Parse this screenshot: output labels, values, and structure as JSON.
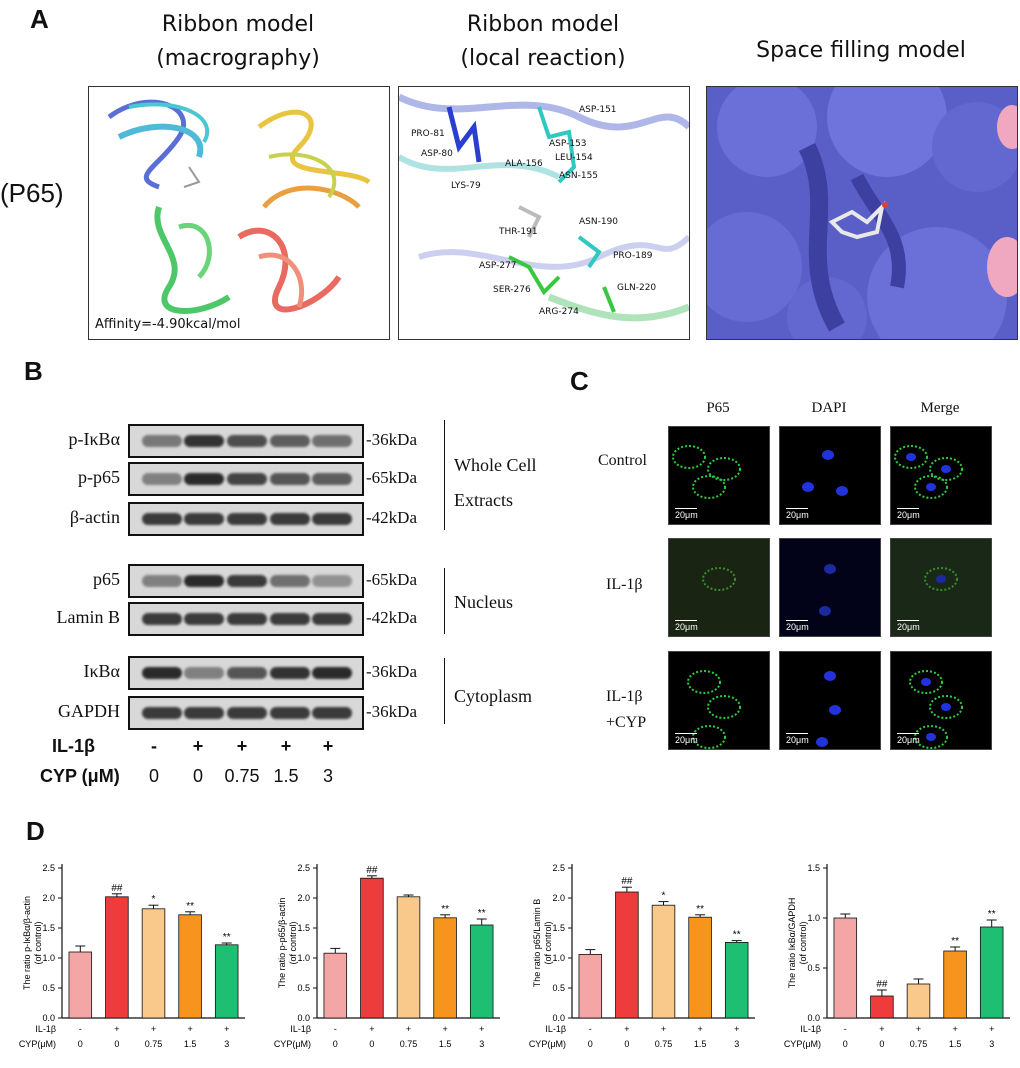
{
  "panel_a": {
    "label": "A",
    "row_label": "(P65)",
    "titles": [
      {
        "line1": "Ribbon model",
        "line2": "(macrography)"
      },
      {
        "line1": "Ribbon model",
        "line2": "(local reaction)"
      },
      {
        "line1": "Space filling model",
        "line2": ""
      }
    ],
    "affinity": "Affinity=-4.90kcal/mol",
    "residues": [
      "ASP-151",
      "PRO-81",
      "ASP-153",
      "ASP-80",
      "ALA-156",
      "LEU-154",
      "LYS-79",
      "ASN-155",
      "ASN-190",
      "THR-191",
      "PRO-189",
      "ASP-277",
      "SER-276",
      "GLN-220",
      "ARG-274"
    ]
  },
  "panel_b": {
    "label": "B",
    "blots": [
      {
        "name": "p-IκBα",
        "kda": "-36kDa",
        "intensity": [
          0.55,
          0.95,
          0.8,
          0.7,
          0.6
        ]
      },
      {
        "name": "p-p65",
        "kda": "-65kDa",
        "intensity": [
          0.5,
          1.0,
          0.85,
          0.75,
          0.7
        ]
      },
      {
        "name": "β-actin",
        "kda": "-42kDa",
        "intensity": [
          0.9,
          0.9,
          0.9,
          0.9,
          0.9
        ]
      },
      {
        "name": "p65",
        "kda": "-65kDa",
        "intensity": [
          0.5,
          1.0,
          0.9,
          0.6,
          0.4
        ]
      },
      {
        "name": "Lamin B",
        "kda": "-42kDa",
        "intensity": [
          0.9,
          0.9,
          0.9,
          0.9,
          0.9
        ]
      },
      {
        "name": "IκBα",
        "kda": "-36kDa",
        "intensity": [
          1.0,
          0.5,
          0.75,
          0.95,
          1.0
        ]
      },
      {
        "name": "GAPDH",
        "kda": "-36kDa",
        "intensity": [
          0.9,
          0.9,
          0.9,
          0.9,
          0.9
        ]
      }
    ],
    "groups": {
      "whole1": "Whole Cell",
      "whole2": "Extracts",
      "nucleus": "Nucleus",
      "cytoplasm": "Cytoplasm"
    },
    "il1b_label": "IL-1β",
    "il1b": [
      "-",
      "+",
      "+",
      "+",
      "+"
    ],
    "cyp_label": "CYP (μM)",
    "cyp": [
      "0",
      "0",
      "0.75",
      "1.5",
      "3"
    ]
  },
  "panel_c": {
    "label": "C",
    "columns": [
      "P65",
      "DAPI",
      "Merge"
    ],
    "rows": [
      {
        "line1": "Control",
        "line2": ""
      },
      {
        "line1": "IL-1β",
        "line2": ""
      },
      {
        "line1": "IL-1β",
        "line2": "+CYP"
      }
    ],
    "scale_bar": "20μm"
  },
  "panel_d": {
    "label": "D"
  },
  "chart_data": [
    {
      "type": "bar",
      "ylabel1": "The ratio  p-IκBα/β-actin",
      "ylabel2": "(of control)",
      "ylim": [
        0,
        2.5
      ],
      "yticks": [
        "0.0",
        "0.5",
        "1.0",
        "1.5",
        "2.0",
        "2.5"
      ],
      "values": [
        1.1,
        2.02,
        1.82,
        1.72,
        1.22
      ],
      "errors": [
        0.1,
        0.05,
        0.06,
        0.05,
        0.03
      ],
      "marks": [
        "",
        "##",
        "*",
        "**",
        "**"
      ],
      "colors": [
        "#f4a6a6",
        "#ee3b3b",
        "#f8c98a",
        "#f7941d",
        "#1fbf73"
      ],
      "il1b_label": "IL-1β",
      "il1b": [
        "-",
        "+",
        "+",
        "+",
        "+"
      ],
      "cyp_label": "CYP(μM)",
      "cyp": [
        "0",
        "0",
        "0.75",
        "1.5",
        "3"
      ]
    },
    {
      "type": "bar",
      "ylabel1": "The ratio  p-p65/β-actin",
      "ylabel2": "(of control)",
      "ylim": [
        0,
        2.5
      ],
      "yticks": [
        "0.0",
        "0.5",
        "1.0",
        "1.5",
        "2.0",
        "2.5"
      ],
      "values": [
        1.08,
        2.33,
        2.02,
        1.67,
        1.55
      ],
      "errors": [
        0.08,
        0.04,
        0.03,
        0.05,
        0.1
      ],
      "marks": [
        "",
        "##",
        "",
        "**",
        "**"
      ],
      "colors": [
        "#f4a6a6",
        "#ee3b3b",
        "#f8c98a",
        "#f7941d",
        "#1fbf73"
      ],
      "il1b_label": "IL-1β",
      "il1b": [
        "-",
        "+",
        "+",
        "+",
        "+"
      ],
      "cyp_label": "CYP(μM)",
      "cyp": [
        "0",
        "0",
        "0.75",
        "1.5",
        "3"
      ]
    },
    {
      "type": "bar",
      "ylabel1": "The ratio  p65/Lamin B",
      "ylabel2": "(of control)",
      "ylim": [
        0,
        2.5
      ],
      "yticks": [
        "0.0",
        "0.5",
        "1.0",
        "1.5",
        "2.0",
        "2.5"
      ],
      "values": [
        1.06,
        2.1,
        1.88,
        1.68,
        1.26
      ],
      "errors": [
        0.08,
        0.08,
        0.06,
        0.04,
        0.03
      ],
      "marks": [
        "",
        "##",
        "*",
        "**",
        "**"
      ],
      "colors": [
        "#f4a6a6",
        "#ee3b3b",
        "#f8c98a",
        "#f7941d",
        "#1fbf73"
      ],
      "il1b_label": "IL-1β",
      "il1b": [
        "-",
        "+",
        "+",
        "+",
        "+"
      ],
      "cyp_label": "CYP(μM)",
      "cyp": [
        "0",
        "0",
        "0.75",
        "1.5",
        "3"
      ]
    },
    {
      "type": "bar",
      "ylabel1": "The ratio  IκBα/GAPDH",
      "ylabel2": "(of control)",
      "ylim": [
        0,
        1.5
      ],
      "yticks": [
        "0.0",
        "0.5",
        "1.0",
        "1.5"
      ],
      "values": [
        1.0,
        0.22,
        0.34,
        0.67,
        0.91
      ],
      "errors": [
        0.04,
        0.06,
        0.05,
        0.04,
        0.07
      ],
      "marks": [
        "",
        "##",
        "",
        "**",
        "**"
      ],
      "colors": [
        "#f4a6a6",
        "#ee3b3b",
        "#f8c98a",
        "#f7941d",
        "#1fbf73"
      ],
      "il1b_label": "IL-1β",
      "il1b": [
        "-",
        "+",
        "+",
        "+",
        "+"
      ],
      "cyp_label": "CYP(μM)",
      "cyp": [
        "0",
        "0",
        "0.75",
        "1.5",
        "3"
      ]
    }
  ]
}
